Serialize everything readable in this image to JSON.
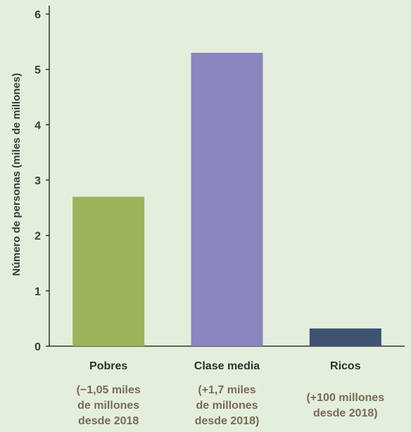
{
  "chart_data": {
    "type": "bar",
    "categories": [
      "Pobres",
      "Clase media",
      "Ricos"
    ],
    "notes": [
      [
        "(−1,05 miles",
        "de millones",
        "desde 2018"
      ],
      [
        "(+1,7 miles",
        "de millones",
        "desde 2018)"
      ],
      [
        "(+100 millones",
        "desde 2018)"
      ]
    ],
    "values": [
      2.7,
      5.3,
      0.32
    ],
    "colors": [
      "#9db35a",
      "#8b86bd",
      "#3e5272"
    ],
    "ylabel": "Número de personas (miles de millones)",
    "ylim": [
      0,
      6
    ],
    "yticks": [
      0,
      1,
      2,
      3,
      4,
      5,
      6
    ],
    "grid": false
  }
}
